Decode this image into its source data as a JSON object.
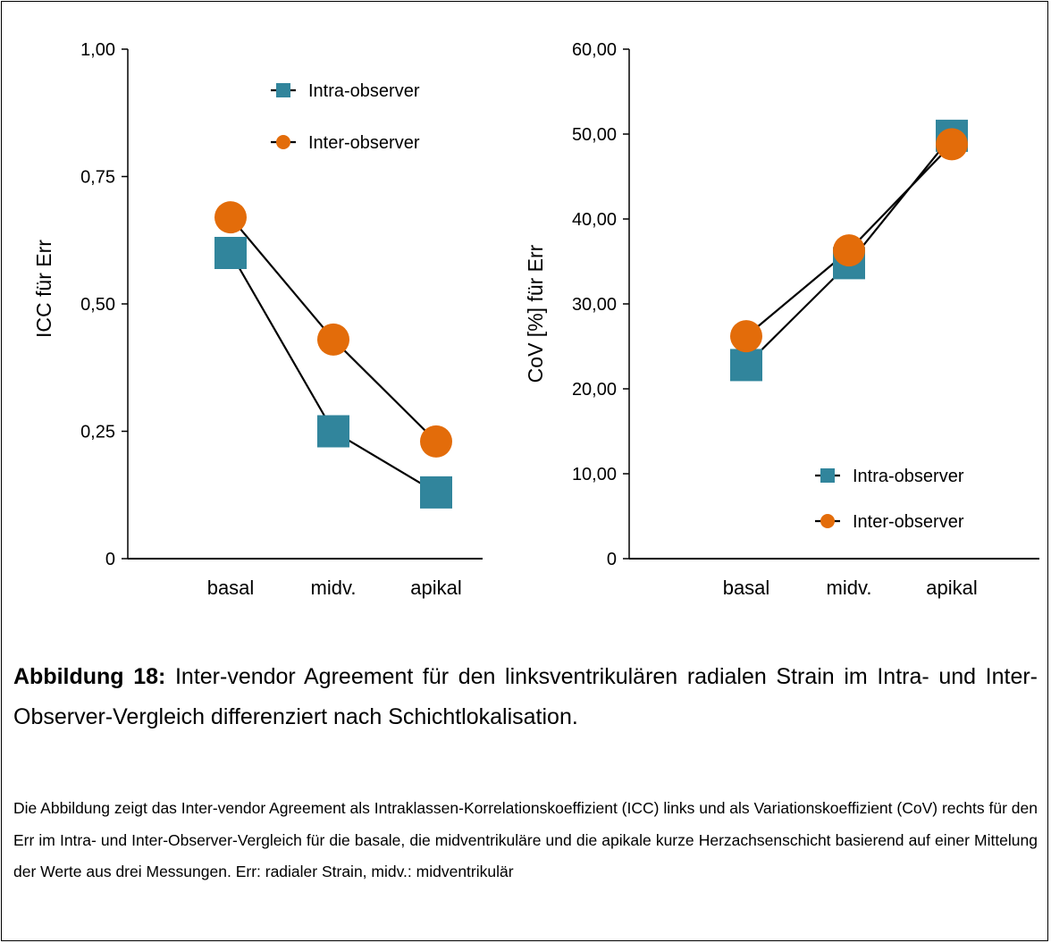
{
  "colors": {
    "intra": "#31859c",
    "inter": "#e36c0a",
    "line": "#000000"
  },
  "chart_data": [
    {
      "type": "line",
      "categories": [
        "basal",
        "midv.",
        "apikal"
      ],
      "ylabel": "ICC für Err",
      "ylim": [
        0,
        1
      ],
      "yticks": [
        0,
        0.25,
        0.5,
        0.75,
        1
      ],
      "ytick_labels": [
        "0",
        "0,25",
        "0,50",
        "0,75",
        "1,00"
      ],
      "legend_position": "top-right",
      "series": [
        {
          "name": "Intra-observer",
          "marker": "square",
          "values": [
            0.6,
            0.25,
            0.13
          ]
        },
        {
          "name": "Inter-observer",
          "marker": "circle",
          "values": [
            0.67,
            0.43,
            0.23
          ]
        }
      ]
    },
    {
      "type": "line",
      "categories": [
        "basal",
        "midv.",
        "apikal"
      ],
      "ylabel": "CoV [%] für Err",
      "ylim": [
        0,
        60
      ],
      "yticks": [
        0,
        10,
        20,
        30,
        40,
        50,
        60
      ],
      "ytick_labels": [
        "0",
        "10,00",
        "20,00",
        "30,00",
        "40,00",
        "50,00",
        "60,00"
      ],
      "legend_position": "bottom-right",
      "series": [
        {
          "name": "Intra-observer",
          "marker": "square",
          "values": [
            22.8,
            34.8,
            49.8
          ]
        },
        {
          "name": "Inter-observer",
          "marker": "circle",
          "values": [
            26.2,
            36.3,
            48.8
          ]
        }
      ]
    }
  ],
  "caption": {
    "label": "Abbildung 18:",
    "text": " Inter-vendor Agreement für den linksventrikulären radialen Strain im Intra- und Inter-Observer-Vergleich differenziert nach Schichtlokalisation."
  },
  "description": "Die Abbildung zeigt das Inter-vendor Agreement als Intraklassen-Korrelationskoeffizient (ICC) links und als Variationskoeffizient (CoV) rechts für den Err im Intra- und Inter-Observer-Vergleich für die basale, die midventrikuläre und die apikale kurze Herzachsenschicht basierend auf einer Mittelung der Werte aus drei Messungen. Err: radialer Strain, midv.: midventrikulär"
}
